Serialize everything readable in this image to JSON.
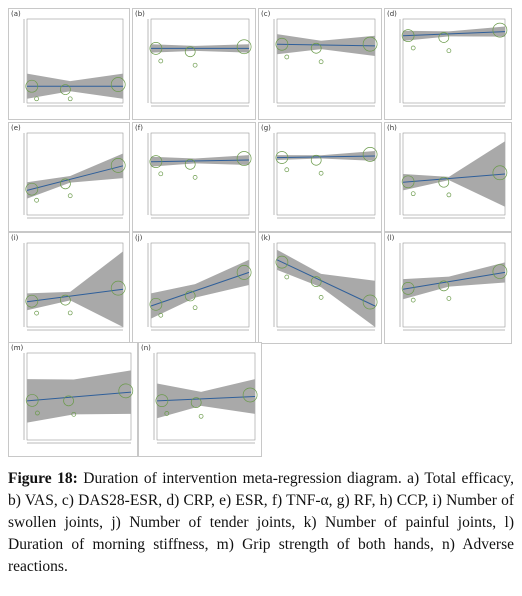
{
  "figure": {
    "panels": [
      {
        "label": "(a)"
      },
      {
        "label": "(b)"
      },
      {
        "label": "(c)"
      },
      {
        "label": "(d)"
      },
      {
        "label": "(e)"
      },
      {
        "label": "(f)"
      },
      {
        "label": "(g)"
      },
      {
        "label": "(h)"
      },
      {
        "label": "(i)"
      },
      {
        "label": "(j)"
      },
      {
        "label": "(k)"
      },
      {
        "label": "(l)"
      },
      {
        "label": "(m)"
      },
      {
        "label": "(n)"
      }
    ],
    "caption": {
      "label": "Figure 18:",
      "text": "Duration of intervention meta-regression diagram. a) Total efficacy, b) VAS, c) DAS28-ESR, d) CRP, e) ESR, f) TNF-α, g) RF, h) CCP, i) Number of swollen joints, j) Number of tender joints, k) Number of painful joints, l) Duration of morning stiffness, m) Grip strength of both hands, n) Adverse reactions."
    }
  }
}
